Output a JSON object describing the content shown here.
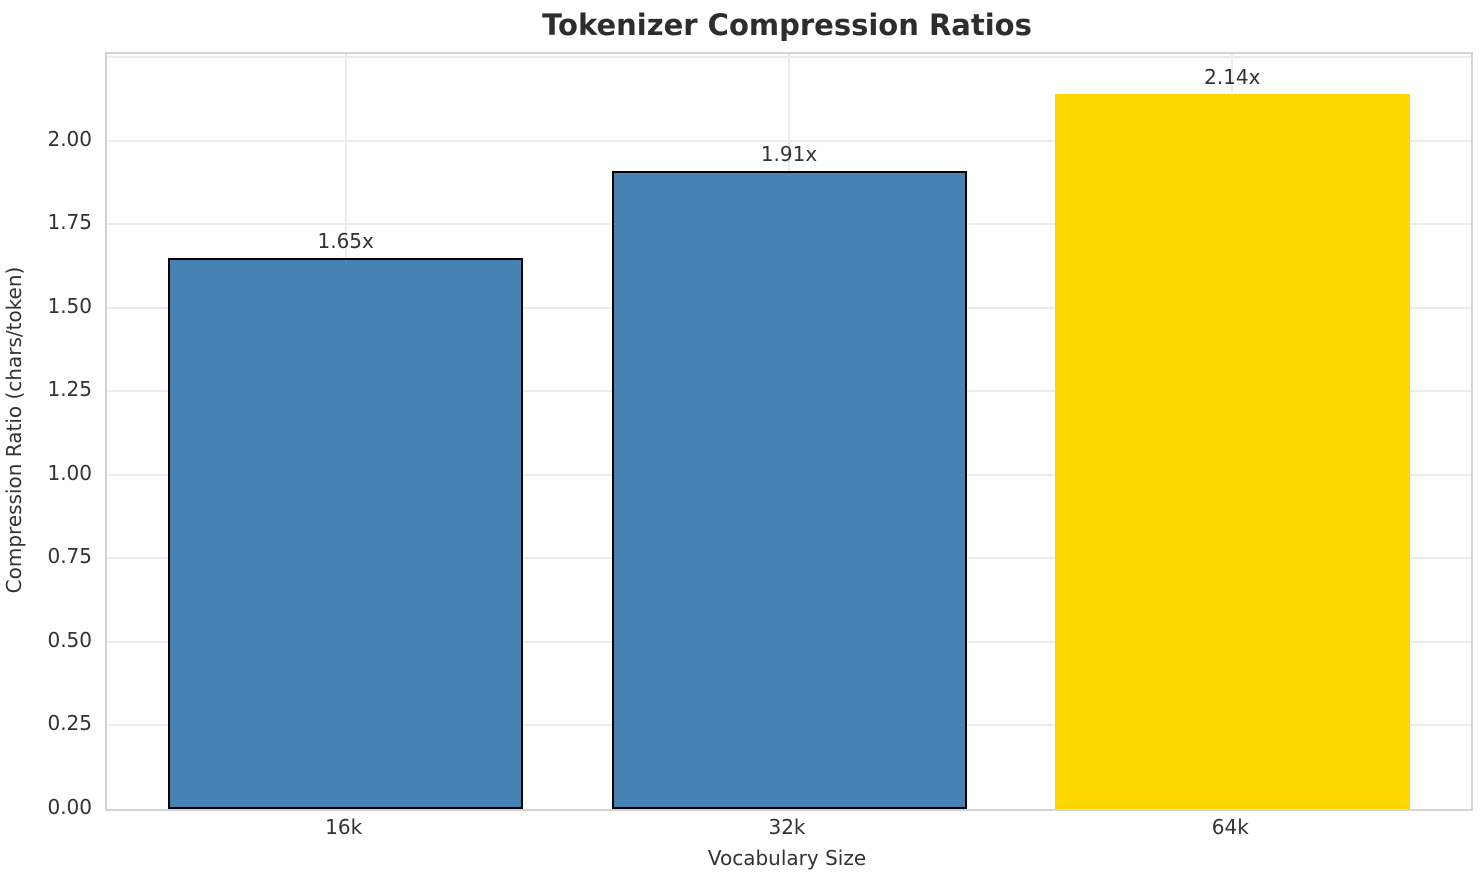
{
  "chart_data": {
    "type": "bar",
    "title": "Tokenizer Compression Ratios",
    "xlabel": "Vocabulary Size",
    "ylabel": "Compression Ratio (chars/token)",
    "categories": [
      "16k",
      "32k",
      "64k"
    ],
    "values": [
      1.65,
      1.91,
      2.14
    ],
    "bar_labels": [
      "1.65x",
      "1.91x",
      "2.14x"
    ],
    "bar_colors": [
      "#4682B4",
      "#4682B4",
      "#FFD700"
    ],
    "bar_edge_colors": [
      "#000000",
      "#000000",
      "none"
    ],
    "ylim": [
      0,
      2.26
    ],
    "yticks": [
      0.0,
      0.25,
      0.5,
      0.75,
      1.0,
      1.25,
      1.5,
      1.75,
      2.0
    ],
    "ytick_labels": [
      "0.00",
      "0.25",
      "0.50",
      "0.75",
      "1.00",
      "1.25",
      "1.50",
      "1.75",
      "2.00"
    ],
    "ygrid_values": [
      0.25,
      0.5,
      0.75,
      1.0,
      1.25,
      1.5,
      1.75,
      2.0,
      2.25
    ],
    "grid": true,
    "legend": "none",
    "colors": {
      "grid": "#ececec",
      "spine": "#d4d4d4",
      "text": "#333333",
      "title_text": "#2d2d2d",
      "background": "#ffffff"
    }
  }
}
